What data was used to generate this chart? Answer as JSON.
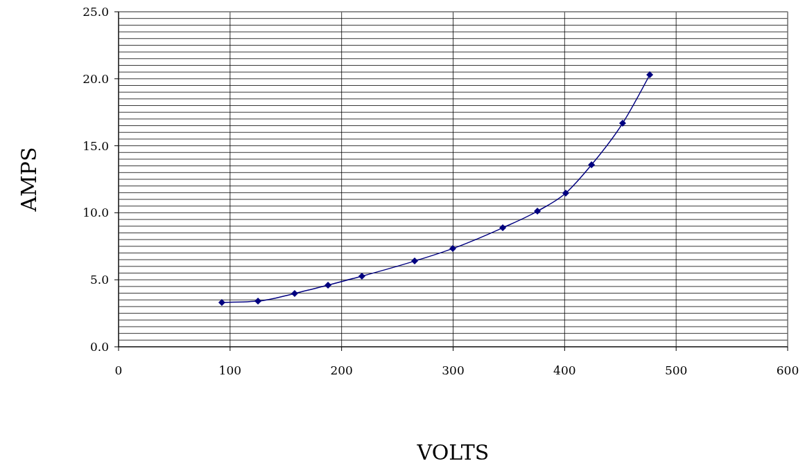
{
  "chart_data": {
    "type": "line",
    "xlabel": "VOLTS",
    "ylabel": "AMPS",
    "xlim": [
      0,
      600
    ],
    "xticks": [
      0,
      100,
      200,
      300,
      400,
      500,
      600
    ],
    "ylim": [
      0,
      25
    ],
    "yticks": [
      {
        "value": 0,
        "label": "0.0"
      },
      {
        "value": 0.5,
        "label": null
      },
      {
        "value": 1,
        "label": null
      },
      {
        "value": 1.5,
        "label": null
      },
      {
        "value": 2,
        "label": null
      },
      {
        "value": 2.5,
        "label": null
      },
      {
        "value": 3,
        "label": null
      },
      {
        "value": 3.5,
        "label": null
      },
      {
        "value": 4,
        "label": null
      },
      {
        "value": 4.5,
        "label": null
      },
      {
        "value": 5,
        "label": "5.0"
      },
      {
        "value": 5.5,
        "label": null
      },
      {
        "value": 6,
        "label": null
      },
      {
        "value": 6.5,
        "label": null
      },
      {
        "value": 7,
        "label": null
      },
      {
        "value": 7.5,
        "label": null
      },
      {
        "value": 8,
        "label": null
      },
      {
        "value": 8.5,
        "label": null
      },
      {
        "value": 9,
        "label": null
      },
      {
        "value": 9.5,
        "label": null
      },
      {
        "value": 10,
        "label": "10.0"
      },
      {
        "value": 10.5,
        "label": null
      },
      {
        "value": 11,
        "label": null
      },
      {
        "value": 11.5,
        "label": null
      },
      {
        "value": 12,
        "label": null
      },
      {
        "value": 12.5,
        "label": null
      },
      {
        "value": 13,
        "label": null
      },
      {
        "value": 13.5,
        "label": null
      },
      {
        "value": 14,
        "label": null
      },
      {
        "value": 14.5,
        "label": null
      },
      {
        "value": 15,
        "label": "15.0"
      },
      {
        "value": 15.5,
        "label": null
      },
      {
        "value": 16,
        "label": null
      },
      {
        "value": 16.5,
        "label": null
      },
      {
        "value": 17,
        "label": null
      },
      {
        "value": 17.5,
        "label": null
      },
      {
        "value": 18,
        "label": null
      },
      {
        "value": 18.5,
        "label": null
      },
      {
        "value": 19,
        "label": null
      },
      {
        "value": 19.5,
        "label": null
      },
      {
        "value": 20,
        "label": "20.0"
      },
      {
        "value": 20.5,
        "label": null
      },
      {
        "value": 21,
        "label": null
      },
      {
        "value": 21.5,
        "label": null
      },
      {
        "value": 22,
        "label": null
      },
      {
        "value": 22.5,
        "label": null
      },
      {
        "value": 23,
        "label": null
      },
      {
        "value": 23.5,
        "label": null
      },
      {
        "value": 24,
        "label": null
      },
      {
        "value": 24.5,
        "label": null
      },
      {
        "value": 25,
        "label": "25.0"
      }
    ],
    "grid": true,
    "marker": "diamond",
    "line_style": "solid",
    "series": [
      {
        "color": "#000080",
        "x": [
          92.6,
          125,
          157.9,
          187.8,
          218.2,
          265.5,
          299.7,
          344.5,
          375.6,
          401,
          424.1,
          452,
          476.3
        ],
        "values": [
          3.31,
          3.41,
          3.98,
          4.6,
          5.27,
          6.4,
          7.33,
          8.88,
          10.12,
          11.47,
          13.58,
          16.68,
          20.3
        ]
      }
    ]
  }
}
